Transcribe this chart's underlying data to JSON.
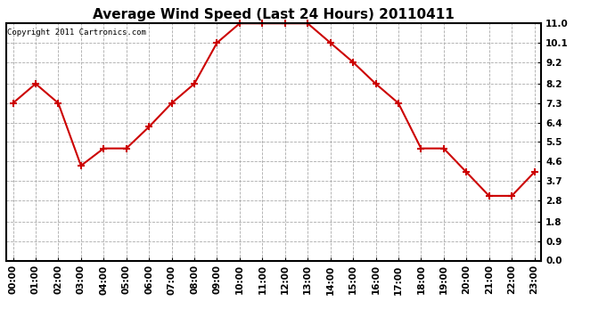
{
  "title": "Average Wind Speed (Last 24 Hours) 20110411",
  "copyright": "Copyright 2011 Cartronics.com",
  "x_labels": [
    "00:00",
    "01:00",
    "02:00",
    "03:00",
    "04:00",
    "05:00",
    "06:00",
    "07:00",
    "08:00",
    "09:00",
    "10:00",
    "11:00",
    "12:00",
    "13:00",
    "14:00",
    "15:00",
    "16:00",
    "17:00",
    "18:00",
    "19:00",
    "20:00",
    "21:00",
    "22:00",
    "23:00"
  ],
  "y_values": [
    7.3,
    8.2,
    7.3,
    4.4,
    5.2,
    5.2,
    6.2,
    7.3,
    8.2,
    10.1,
    11.0,
    11.0,
    11.0,
    11.0,
    10.1,
    9.2,
    8.2,
    7.3,
    5.2,
    5.2,
    4.1,
    3.0,
    3.0,
    4.1
  ],
  "y_ticks": [
    0.0,
    0.9,
    1.8,
    2.8,
    3.7,
    4.6,
    5.5,
    6.4,
    7.3,
    8.2,
    9.2,
    10.1,
    11.0
  ],
  "y_min": 0.0,
  "y_max": 11.0,
  "line_color": "#cc0000",
  "marker": "+",
  "marker_size": 6,
  "marker_linewidth": 1.5,
  "line_width": 1.5,
  "bg_color": "#ffffff",
  "plot_bg_color": "#ffffff",
  "grid_color": "#aaaaaa",
  "grid_style": "--",
  "title_fontsize": 11,
  "copyright_fontsize": 6.5,
  "tick_fontsize": 7.5,
  "border_color": "#000000"
}
